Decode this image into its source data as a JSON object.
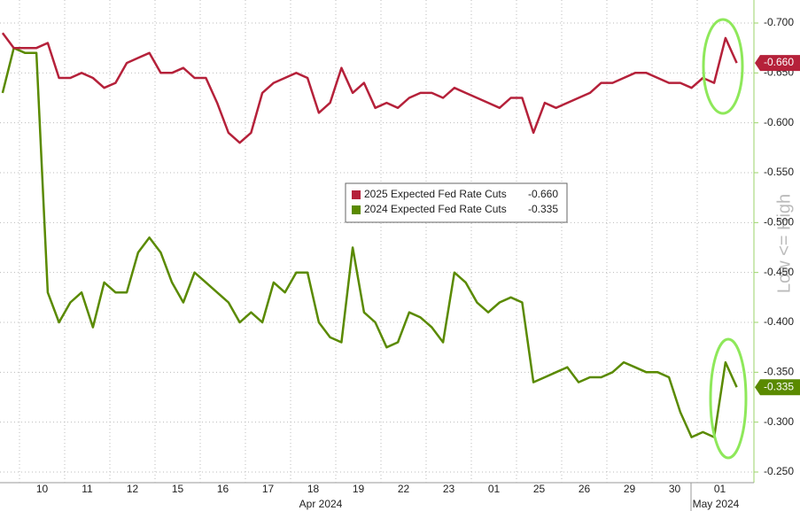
{
  "chart_data": {
    "type": "line",
    "categories": [
      null,
      null,
      null,
      null,
      "10",
      null,
      null,
      null,
      "11",
      null,
      null,
      null,
      "12",
      null,
      null,
      null,
      "15",
      null,
      null,
      null,
      "16",
      null,
      null,
      null,
      "17",
      null,
      null,
      null,
      "18",
      null,
      null,
      null,
      "19",
      null,
      null,
      null,
      "22",
      null,
      null,
      null,
      "23",
      null,
      null,
      null,
      "01",
      null,
      null,
      null,
      "25",
      null,
      null,
      null,
      "26",
      null,
      null,
      null,
      "29",
      null,
      null,
      null,
      "30",
      null,
      null,
      null,
      "01",
      null
    ],
    "x_group_labels": [
      "Apr 2024",
      "May 2024"
    ],
    "side_label": "Low <= High",
    "series": [
      {
        "name": "2024 Expected Fed Rate Cuts",
        "last_label": "-0.335",
        "color": "#5a8a00",
        "values": [
          -0.63,
          -0.675,
          -0.67,
          -0.67,
          -0.43,
          -0.4,
          -0.42,
          -0.43,
          -0.395,
          -0.44,
          -0.43,
          -0.43,
          -0.47,
          -0.485,
          -0.47,
          -0.44,
          -0.42,
          -0.45,
          -0.44,
          -0.43,
          -0.42,
          -0.4,
          -0.41,
          -0.4,
          -0.44,
          -0.43,
          -0.45,
          -0.45,
          -0.4,
          -0.385,
          -0.38,
          -0.475,
          -0.41,
          -0.4,
          -0.375,
          -0.38,
          -0.41,
          -0.405,
          -0.395,
          -0.38,
          -0.45,
          -0.44,
          -0.42,
          -0.41,
          -0.42,
          -0.425,
          -0.42,
          -0.34,
          -0.345,
          -0.35,
          -0.355,
          -0.34,
          -0.345,
          -0.345,
          -0.35,
          -0.36,
          -0.355,
          -0.35,
          -0.35,
          -0.345,
          -0.31,
          -0.285,
          -0.29,
          -0.285,
          -0.36,
          -0.335
        ]
      },
      {
        "name": "2025 Expected Fed Rate Cuts",
        "last_label": "-0.660",
        "color": "#b5213a",
        "values": [
          -0.69,
          -0.675,
          -0.675,
          -0.675,
          -0.68,
          -0.645,
          -0.645,
          -0.65,
          -0.645,
          -0.635,
          -0.64,
          -0.66,
          -0.665,
          -0.67,
          -0.65,
          -0.65,
          -0.655,
          -0.645,
          -0.645,
          -0.62,
          -0.59,
          -0.58,
          -0.59,
          -0.63,
          -0.64,
          -0.645,
          -0.65,
          -0.645,
          -0.61,
          -0.62,
          -0.655,
          -0.63,
          -0.64,
          -0.615,
          -0.62,
          -0.615,
          -0.625,
          -0.63,
          -0.63,
          -0.625,
          -0.635,
          -0.63,
          -0.625,
          -0.62,
          -0.615,
          -0.625,
          -0.625,
          -0.59,
          -0.62,
          -0.615,
          -0.62,
          -0.625,
          -0.63,
          -0.64,
          -0.64,
          -0.645,
          -0.65,
          -0.65,
          -0.645,
          -0.64,
          -0.64,
          -0.635,
          -0.645,
          -0.64,
          -0.685,
          -0.66
        ]
      }
    ],
    "ylim": [
      -0.25,
      -0.7
    ],
    "yticks": [
      {
        "value": -0.7,
        "label": "-0.700"
      },
      {
        "value": -0.65,
        "label": "-0.650"
      },
      {
        "value": -0.6,
        "label": "-0.600"
      },
      {
        "value": -0.55,
        "label": "-0.550"
      },
      {
        "value": -0.5,
        "label": "-0.500"
      },
      {
        "value": -0.45,
        "label": "-0.450"
      },
      {
        "value": -0.4,
        "label": "-0.400"
      },
      {
        "value": -0.35,
        "label": "-0.350"
      },
      {
        "value": -0.3,
        "label": "-0.300"
      },
      {
        "value": -0.25,
        "label": "-0.250"
      }
    ],
    "grid": true
  }
}
